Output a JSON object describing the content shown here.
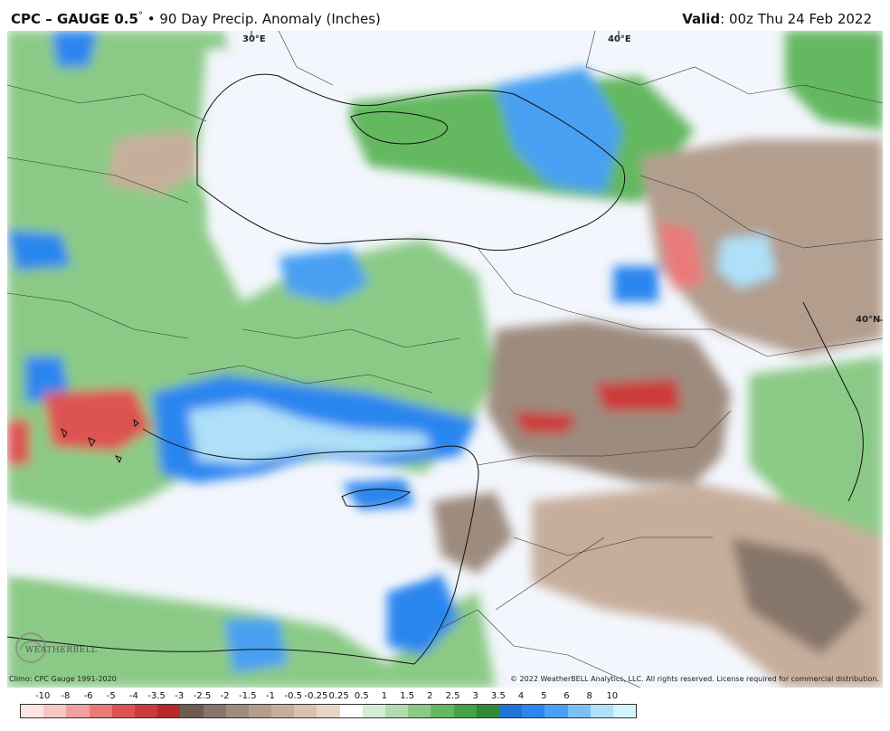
{
  "header": {
    "product": "CPC – GAUGE 0.5",
    "degree": "°",
    "description": " • 90 Day Precip. Anomaly (Inches)",
    "valid_label": "Valid",
    "valid_value": ": 00z Thu 24 Feb 2022"
  },
  "map": {
    "lon_labels": [
      "30°E",
      "40°E"
    ],
    "lat_labels": [
      "40°N"
    ]
  },
  "footer": {
    "climo": "Climo: CPC Gauge 1991-2020",
    "copyright": "© 2022 WeatherBELL Analytics, LLC. All rights reserved. License required for commercial distribution.",
    "logo_text": "WEATHERBELL"
  },
  "colorbar": {
    "ticks": [
      "-10",
      "-8",
      "-6",
      "-5",
      "-4",
      "-3.5",
      "-3",
      "-2.5",
      "-2",
      "-1.5",
      "-1",
      "-0.5",
      "-0.25",
      "0.25",
      "0.5",
      "1",
      "1.5",
      "2",
      "2.5",
      "3",
      "3.5",
      "4",
      "5",
      "6",
      "8",
      "10"
    ],
    "colors": [
      "#fde3e3",
      "#f9c5c5",
      "#f3a0a0",
      "#ea7a7a",
      "#dd5353",
      "#cc3a3a",
      "#b82a2a",
      "#6e5c52",
      "#86766b",
      "#9d8b7e",
      "#b39e8e",
      "#c7ae9b",
      "#d9c2ae",
      "#e7d7c7",
      "#ffffff",
      "#d7ecd6",
      "#b2dcae",
      "#8bca86",
      "#64b861",
      "#45a246",
      "#2f8a37",
      "#1f73d9",
      "#2c86ef",
      "#4aa0f2",
      "#7cc0f5",
      "#aee0f8",
      "#d2f3fb"
    ]
  }
}
